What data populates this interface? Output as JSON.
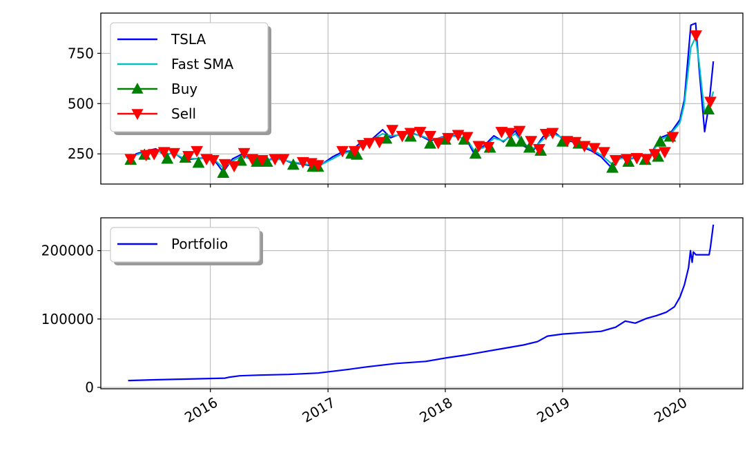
{
  "chart_data": [
    {
      "type": "line",
      "x_axis": "date",
      "xlim": [
        "2015-01-25",
        "2020-07-15"
      ],
      "xticks": [
        "2016-01-01",
        "2017-01-01",
        "2018-01-01",
        "2019-01-01",
        "2020-01-01"
      ],
      "xtick_labels": [],
      "ylim": [
        100,
        950
      ],
      "yticks": [
        250,
        500,
        750
      ],
      "ytick_labels": [
        "250",
        "500",
        "750"
      ],
      "grid": true,
      "legend": {
        "position": "top-left",
        "entries": [
          "TSLA",
          "Fast SMA",
          "Buy",
          "Sell"
        ]
      },
      "series": [
        {
          "name": "TSLA",
          "color": "#0000ff",
          "style": "line",
          "x": [
            "2015-04-20",
            "2015-05-15",
            "2015-06-15",
            "2015-07-15",
            "2015-08-10",
            "2015-09-10",
            "2015-10-10",
            "2015-11-10",
            "2015-12-10",
            "2016-01-15",
            "2016-02-10",
            "2016-03-10",
            "2016-04-10",
            "2016-05-10",
            "2016-06-10",
            "2016-07-10",
            "2016-08-10",
            "2016-09-10",
            "2016-10-10",
            "2016-11-10",
            "2016-12-10",
            "2017-01-15",
            "2017-02-15",
            "2017-03-15",
            "2017-04-15",
            "2017-05-15",
            "2017-06-20",
            "2017-07-15",
            "2017-08-15",
            "2017-09-15",
            "2017-10-15",
            "2017-11-15",
            "2017-12-15",
            "2018-01-15",
            "2018-02-15",
            "2018-03-15",
            "2018-04-01",
            "2018-05-01",
            "2018-06-01",
            "2018-07-01",
            "2018-08-07",
            "2018-09-01",
            "2018-10-01",
            "2018-11-01",
            "2018-12-01",
            "2019-01-01",
            "2019-02-01",
            "2019-03-01",
            "2019-04-01",
            "2019-05-01",
            "2019-06-03",
            "2019-07-01",
            "2019-08-01",
            "2019-09-01",
            "2019-10-01",
            "2019-11-01",
            "2019-12-01",
            "2020-01-01",
            "2020-01-15",
            "2020-02-04",
            "2020-02-19",
            "2020-03-01",
            "2020-03-18",
            "2020-04-01",
            "2020-04-14"
          ],
          "y": [
            215,
            250,
            265,
            275,
            245,
            255,
            220,
            225,
            230,
            215,
            160,
            225,
            250,
            215,
            210,
            225,
            225,
            205,
            200,
            190,
            195,
            235,
            260,
            265,
            310,
            320,
            370,
            330,
            350,
            355,
            340,
            315,
            330,
            345,
            335,
            300,
            250,
            290,
            340,
            310,
            365,
            290,
            265,
            335,
            365,
            325,
            310,
            285,
            265,
            235,
            180,
            235,
            225,
            240,
            245,
            330,
            350,
            420,
            520,
            890,
            900,
            670,
            360,
            500,
            710
          ]
        },
        {
          "name": "Fast SMA",
          "color": "#00bfbf",
          "style": "line",
          "x": [
            "2015-04-20",
            "2015-05-15",
            "2015-06-15",
            "2015-07-15",
            "2015-08-10",
            "2015-09-10",
            "2015-10-10",
            "2015-11-10",
            "2015-12-10",
            "2016-01-15",
            "2016-02-10",
            "2016-03-10",
            "2016-04-10",
            "2016-05-10",
            "2016-06-10",
            "2016-07-10",
            "2016-08-10",
            "2016-09-10",
            "2016-10-10",
            "2016-11-10",
            "2016-12-10",
            "2017-01-15",
            "2017-02-15",
            "2017-03-15",
            "2017-04-15",
            "2017-05-15",
            "2017-06-20",
            "2017-07-15",
            "2017-08-15",
            "2017-09-15",
            "2017-10-15",
            "2017-11-15",
            "2017-12-15",
            "2018-01-15",
            "2018-02-15",
            "2018-03-15",
            "2018-04-01",
            "2018-05-01",
            "2018-06-01",
            "2018-07-01",
            "2018-08-07",
            "2018-09-01",
            "2018-10-01",
            "2018-11-01",
            "2018-12-01",
            "2019-01-01",
            "2019-02-01",
            "2019-03-01",
            "2019-04-01",
            "2019-05-01",
            "2019-06-03",
            "2019-07-01",
            "2019-08-01",
            "2019-09-01",
            "2019-10-01",
            "2019-11-01",
            "2019-12-01",
            "2020-01-01",
            "2020-01-15",
            "2020-02-04",
            "2020-02-19",
            "2020-03-01",
            "2020-03-18",
            "2020-04-01",
            "2020-04-14"
          ],
          "y": [
            220,
            245,
            260,
            270,
            250,
            252,
            228,
            226,
            228,
            220,
            180,
            215,
            240,
            220,
            212,
            222,
            222,
            210,
            203,
            195,
            196,
            225,
            252,
            262,
            300,
            318,
            350,
            340,
            345,
            350,
            342,
            322,
            328,
            340,
            335,
            308,
            265,
            282,
            328,
            315,
            350,
            300,
            275,
            322,
            352,
            330,
            315,
            292,
            272,
            245,
            200,
            228,
            228,
            238,
            244,
            318,
            345,
            405,
            500,
            780,
            830,
            700,
            450,
            480,
            560
          ]
        },
        {
          "name": "Buy",
          "color": "#008000",
          "style": "marker",
          "marker": "triangle-up",
          "x": [
            "2015-04-28",
            "2015-06-10",
            "2015-08-20",
            "2015-10-15",
            "2015-11-25",
            "2016-02-10",
            "2016-04-05",
            "2016-05-25",
            "2016-06-25",
            "2016-09-15",
            "2016-11-15",
            "2016-12-01",
            "2017-03-15",
            "2017-04-01",
            "2017-07-01",
            "2017-09-15",
            "2017-11-15",
            "2018-01-01",
            "2018-03-01",
            "2018-04-05",
            "2018-05-20",
            "2018-07-25",
            "2018-08-25",
            "2018-09-20",
            "2018-10-25",
            "2019-01-01",
            "2019-02-20",
            "2019-06-05",
            "2019-07-25",
            "2019-09-15",
            "2019-10-25",
            "2019-11-01",
            "2019-12-01",
            "2020-03-30"
          ],
          "y": [
            220,
            245,
            225,
            230,
            205,
            155,
            215,
            210,
            210,
            195,
            185,
            185,
            250,
            245,
            325,
            335,
            300,
            320,
            320,
            250,
            280,
            310,
            310,
            280,
            265,
            310,
            300,
            180,
            210,
            220,
            235,
            310,
            335,
            470
          ]
        },
        {
          "name": "Sell",
          "color": "#ff0000",
          "style": "marker",
          "marker": "triangle-down",
          "x": [
            "2015-04-28",
            "2015-06-15",
            "2015-07-10",
            "2015-08-10",
            "2015-09-10",
            "2015-10-25",
            "2015-11-20",
            "2015-12-20",
            "2016-01-10",
            "2016-02-15",
            "2016-03-15",
            "2016-04-15",
            "2016-05-10",
            "2016-06-10",
            "2016-07-20",
            "2016-08-15",
            "2016-10-15",
            "2016-11-10",
            "2016-12-01",
            "2017-02-15",
            "2017-03-25",
            "2017-04-20",
            "2017-05-10",
            "2017-06-10",
            "2017-07-20",
            "2017-08-20",
            "2017-09-15",
            "2017-10-15",
            "2017-11-15",
            "2017-12-10",
            "2018-01-10",
            "2018-02-10",
            "2018-03-10",
            "2018-04-15",
            "2018-05-15",
            "2018-06-25",
            "2018-07-20",
            "2018-08-20",
            "2018-09-25",
            "2018-10-20",
            "2018-11-10",
            "2018-12-01",
            "2019-01-15",
            "2019-02-10",
            "2019-03-10",
            "2019-04-10",
            "2019-05-10",
            "2019-06-15",
            "2019-07-20",
            "2019-08-20",
            "2019-09-20",
            "2019-10-15",
            "2019-11-15",
            "2019-12-10",
            "2020-02-20",
            "2020-04-05"
          ],
          "y": [
            225,
            245,
            250,
            260,
            255,
            240,
            265,
            225,
            220,
            200,
            190,
            255,
            225,
            220,
            225,
            225,
            210,
            205,
            195,
            265,
            265,
            295,
            305,
            310,
            370,
            340,
            355,
            360,
            340,
            305,
            330,
            345,
            335,
            290,
            285,
            360,
            355,
            365,
            315,
            275,
            350,
            355,
            315,
            310,
            290,
            280,
            260,
            220,
            225,
            230,
            225,
            250,
            260,
            335,
            840,
            510
          ]
        }
      ]
    },
    {
      "type": "line",
      "x_axis": "date",
      "xlim": [
        "2015-01-25",
        "2020-07-15"
      ],
      "xticks": [
        "2016-01-01",
        "2017-01-01",
        "2018-01-01",
        "2019-01-01",
        "2020-01-01"
      ],
      "xtick_labels": [
        "2016",
        "2017",
        "2018",
        "2019",
        "2020"
      ],
      "ylim": [
        -2000,
        248000
      ],
      "yticks": [
        0,
        100000,
        200000
      ],
      "ytick_labels": [
        "0",
        "100000",
        "200000"
      ],
      "grid": true,
      "legend": {
        "position": "top-left",
        "entries": [
          "Portfolio"
        ]
      },
      "series": [
        {
          "name": "Portfolio",
          "color": "#0000ff",
          "style": "line",
          "x": [
            "2015-04-20",
            "2015-07-01",
            "2015-10-01",
            "2016-01-01",
            "2016-02-15",
            "2016-03-01",
            "2016-04-01",
            "2016-06-01",
            "2016-09-01",
            "2016-12-01",
            "2017-03-01",
            "2017-05-01",
            "2017-08-01",
            "2017-11-01",
            "2018-01-01",
            "2018-03-01",
            "2018-05-01",
            "2018-07-01",
            "2018-09-01",
            "2018-10-15",
            "2018-11-15",
            "2019-01-01",
            "2019-03-01",
            "2019-05-01",
            "2019-06-15",
            "2019-07-15",
            "2019-08-15",
            "2019-09-20",
            "2019-10-20",
            "2019-11-20",
            "2019-12-15",
            "2020-01-01",
            "2020-01-15",
            "2020-01-28",
            "2020-02-03",
            "2020-02-08",
            "2020-02-12",
            "2020-02-20",
            "2020-03-10",
            "2020-04-01",
            "2020-04-05",
            "2020-04-14"
          ],
          "y": [
            10000,
            11000,
            12000,
            13000,
            13500,
            15000,
            17000,
            18000,
            19000,
            21000,
            26000,
            30000,
            35000,
            38000,
            43000,
            47000,
            52000,
            57000,
            62000,
            67000,
            75000,
            78000,
            80000,
            82000,
            88000,
            97000,
            94000,
            101000,
            105000,
            110000,
            118000,
            132000,
            150000,
            175000,
            200000,
            183000,
            198000,
            194000,
            194000,
            194000,
            205000,
            238000
          ]
        }
      ]
    }
  ]
}
